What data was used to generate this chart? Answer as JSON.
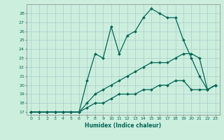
{
  "xlabel": "Humidex (Indice chaleur)",
  "background_color": "#cceedd",
  "grid_color": "#aacccc",
  "line_color": "#006655",
  "ylim": [
    16.7,
    29.0
  ],
  "xlim": [
    -0.5,
    23.5
  ],
  "yticks": [
    17,
    18,
    19,
    20,
    21,
    22,
    23,
    24,
    25,
    26,
    27,
    28
  ],
  "xticks": [
    0,
    1,
    2,
    3,
    4,
    5,
    6,
    7,
    8,
    9,
    10,
    11,
    12,
    13,
    14,
    15,
    16,
    17,
    18,
    19,
    20,
    21,
    22,
    23
  ],
  "series": [
    {
      "x": [
        0,
        1,
        2,
        3,
        4,
        5,
        6,
        7,
        8,
        9,
        10,
        11,
        12,
        13,
        14,
        15,
        16,
        17,
        18,
        19,
        20,
        21,
        22,
        23
      ],
      "y": [
        17,
        17,
        17,
        17,
        17,
        17,
        17,
        17.5,
        18,
        18,
        18.5,
        19,
        19,
        19,
        19.5,
        19.5,
        20,
        20,
        20.5,
        20.5,
        19.5,
        19.5,
        19.5,
        20
      ]
    },
    {
      "x": [
        0,
        1,
        2,
        3,
        4,
        5,
        6,
        7,
        8,
        9,
        10,
        11,
        12,
        13,
        14,
        15,
        16,
        17,
        18,
        19,
        20,
        21,
        22,
        23
      ],
      "y": [
        17,
        17,
        17,
        17,
        17,
        17,
        17,
        18,
        19,
        19.5,
        20,
        20.5,
        21,
        21.5,
        22,
        22.5,
        22.5,
        22.5,
        23,
        23.5,
        23.5,
        23,
        19.5,
        20
      ]
    },
    {
      "x": [
        0,
        1,
        2,
        3,
        4,
        5,
        6,
        7,
        8,
        9,
        10,
        11,
        12,
        13,
        14,
        15,
        16,
        17,
        18,
        19,
        20,
        21,
        22,
        23
      ],
      "y": [
        17,
        17,
        17,
        17,
        17,
        17,
        17,
        20.5,
        23.5,
        23,
        26.5,
        23.5,
        25.5,
        26,
        27.5,
        28.5,
        28,
        27.5,
        27.5,
        25,
        23,
        21,
        19.5,
        20
      ]
    }
  ]
}
